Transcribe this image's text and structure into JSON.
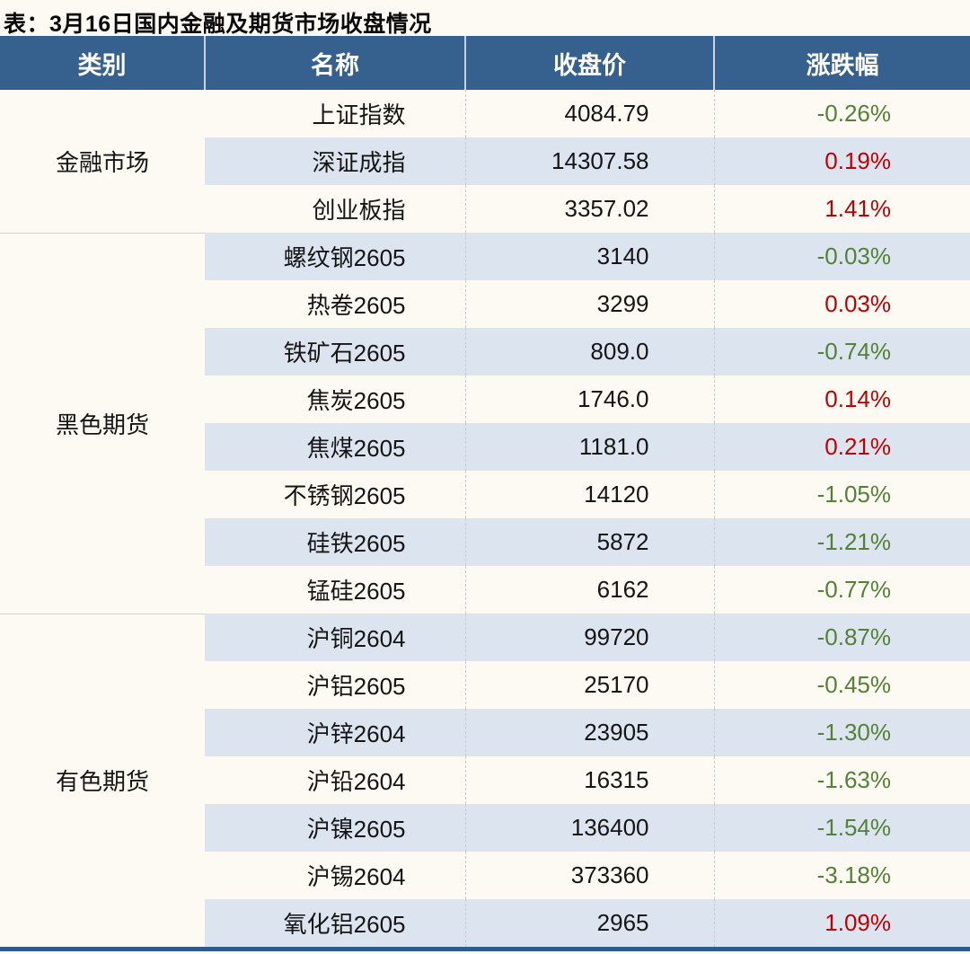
{
  "title": "表：3月16日国内金融及期货市场收盘情况",
  "colors": {
    "header_bg": "#36608E",
    "header_text": "#FFFFFF",
    "row_bg": "#FCFAF2",
    "row_alt_bg": "#DCE4EF",
    "up_red": "#C00000",
    "down_green": "#538135",
    "bottom_bar": "#2F5B8C"
  },
  "table": {
    "headers": [
      "类别",
      "名称",
      "收盘价",
      "涨跌幅"
    ],
    "groups": [
      {
        "category": "金融市场",
        "rows": [
          {
            "name": "上证指数",
            "close": "4084.79",
            "change": "-0.26%"
          },
          {
            "name": "深证成指",
            "close": "14307.58",
            "change": "0.19%"
          },
          {
            "name": "创业板指",
            "close": "3357.02",
            "change": "1.41%"
          }
        ]
      },
      {
        "category": "黑色期货",
        "rows": [
          {
            "name": "螺纹钢2605",
            "close": "3140",
            "change": "-0.03%"
          },
          {
            "name": "热卷2605",
            "close": "3299",
            "change": "0.03%"
          },
          {
            "name": "铁矿石2605",
            "close": "809.0",
            "change": "-0.74%"
          },
          {
            "name": "焦炭2605",
            "close": "1746.0",
            "change": "0.14%"
          },
          {
            "name": "焦煤2605",
            "close": "1181.0",
            "change": "0.21%"
          },
          {
            "name": "不锈钢2605",
            "close": "14120",
            "change": "-1.05%"
          },
          {
            "name": "硅铁2605",
            "close": "5872",
            "change": "-1.21%"
          },
          {
            "name": "锰硅2605",
            "close": "6162",
            "change": "-0.77%"
          }
        ]
      },
      {
        "category": "有色期货",
        "rows": [
          {
            "name": "沪铜2604",
            "close": "99720",
            "change": "-0.87%"
          },
          {
            "name": "沪铝2605",
            "close": "25170",
            "change": "-0.45%"
          },
          {
            "name": "沪锌2604",
            "close": "23905",
            "change": "-1.30%"
          },
          {
            "name": "沪铅2604",
            "close": "16315",
            "change": "-1.63%"
          },
          {
            "name": "沪镍2605",
            "close": "136400",
            "change": "-1.54%"
          },
          {
            "name": "沪锡2604",
            "close": "373360",
            "change": "-3.18%"
          },
          {
            "name": "氧化铝2605",
            "close": "2965",
            "change": "1.09%"
          }
        ]
      }
    ]
  },
  "chart_data": {
    "type": "table",
    "title": "表：3月16日国内金融及期货市场收盘情况",
    "columns": [
      "类别",
      "名称",
      "收盘价",
      "涨跌幅"
    ],
    "rows": [
      [
        "金融市场",
        "上证指数",
        4084.79,
        -0.26
      ],
      [
        "金融市场",
        "深证成指",
        14307.58,
        0.19
      ],
      [
        "金融市场",
        "创业板指",
        3357.02,
        1.41
      ],
      [
        "黑色期货",
        "螺纹钢2605",
        3140,
        -0.03
      ],
      [
        "黑色期货",
        "热卷2605",
        3299,
        0.03
      ],
      [
        "黑色期货",
        "铁矿石2605",
        809.0,
        -0.74
      ],
      [
        "黑色期货",
        "焦炭2605",
        1746.0,
        0.14
      ],
      [
        "黑色期货",
        "焦煤2605",
        1181.0,
        0.21
      ],
      [
        "黑色期货",
        "不锈钢2605",
        14120,
        -1.05
      ],
      [
        "黑色期货",
        "硅铁2605",
        5872,
        -1.21
      ],
      [
        "黑色期货",
        "锰硅2605",
        6162,
        -0.77
      ],
      [
        "有色期货",
        "沪铜2604",
        99720,
        -0.87
      ],
      [
        "有色期货",
        "沪铝2605",
        25170,
        -0.45
      ],
      [
        "有色期货",
        "沪锌2604",
        23905,
        -1.3
      ],
      [
        "有色期货",
        "沪铅2604",
        16315,
        -1.63
      ],
      [
        "有色期货",
        "沪镍2605",
        136400,
        -1.54
      ],
      [
        "有色期货",
        "沪锡2604",
        373360,
        -3.18
      ],
      [
        "有色期货",
        "氧化铝2605",
        2965,
        1.09
      ]
    ],
    "value_color_convention": "positive=red #C00000, negative=green #538135"
  }
}
